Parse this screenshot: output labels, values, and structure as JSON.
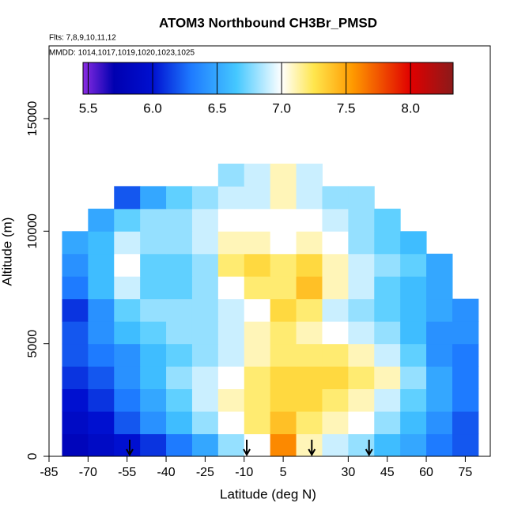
{
  "chart_data": {
    "type": "heatmap",
    "title": "ATOM3 Northbound CH3Br_PMSD",
    "subtitle": "Flts: 7,8,9,10,11,12",
    "annotation": "MMDD: 1014,1017,1019,1020,1023,1025",
    "x_label": "Latitude (deg N)",
    "y_label": "Altitude (m)",
    "xlim": [
      -85,
      84.6
    ],
    "ylim": [
      0,
      18230
    ],
    "xticks": [
      -85,
      -70,
      -55,
      -40,
      -25,
      -10,
      5,
      30,
      45,
      60,
      75
    ],
    "yticks": [
      0,
      5000,
      10000,
      15000
    ],
    "x": [
      -75,
      -65,
      -55,
      -45,
      -35,
      -25,
      -15,
      -5,
      5,
      15,
      25,
      35,
      45,
      55,
      65,
      75
    ],
    "y": [
      500,
      1500,
      2500,
      3500,
      4500,
      5500,
      6500,
      7500,
      8500,
      9500,
      10500,
      11500,
      12500
    ],
    "z": [
      [
        5.8,
        5.9,
        6.0,
        6.1,
        6.3,
        6.5,
        6.8,
        7.0,
        7.6,
        7.1,
        6.9,
        6.8,
        6.6,
        6.5,
        6.3,
        6.2
      ],
      [
        5.9,
        6.0,
        6.2,
        6.4,
        6.6,
        6.8,
        7.0,
        7.2,
        7.4,
        7.2,
        7.1,
        7.0,
        6.8,
        6.6,
        6.4,
        6.2
      ],
      [
        6.0,
        6.1,
        6.3,
        6.5,
        6.7,
        6.9,
        7.1,
        7.2,
        7.3,
        7.3,
        7.2,
        7.1,
        6.9,
        6.7,
        6.5,
        6.3
      ],
      [
        6.1,
        6.2,
        6.4,
        6.6,
        6.8,
        6.9,
        7.0,
        7.2,
        7.3,
        7.3,
        7.3,
        7.2,
        7.1,
        6.8,
        6.5,
        6.3
      ],
      [
        6.2,
        6.3,
        6.4,
        6.6,
        6.7,
        6.8,
        6.9,
        7.1,
        7.2,
        7.2,
        7.2,
        7.1,
        6.9,
        6.7,
        6.4,
        6.3
      ],
      [
        6.2,
        6.4,
        6.6,
        6.7,
        6.8,
        6.8,
        6.9,
        7.1,
        7.2,
        7.1,
        7.0,
        6.9,
        6.8,
        6.6,
        6.4,
        6.4
      ],
      [
        6.1,
        6.4,
        6.7,
        6.8,
        6.8,
        6.8,
        6.9,
        7.0,
        7.3,
        7.2,
        6.9,
        6.8,
        6.7,
        6.6,
        6.5,
        6.4
      ],
      [
        6.3,
        6.6,
        6.9,
        6.7,
        6.7,
        6.8,
        7.0,
        7.2,
        7.2,
        7.4,
        7.1,
        6.9,
        6.7,
        6.6,
        6.5,
        null
      ],
      [
        6.4,
        6.6,
        7.0,
        6.7,
        6.7,
        6.8,
        7.2,
        7.3,
        7.2,
        7.3,
        7.1,
        6.9,
        6.8,
        6.7,
        6.5,
        null
      ],
      [
        6.5,
        6.6,
        6.9,
        6.8,
        6.8,
        6.9,
        7.1,
        7.1,
        7.0,
        7.1,
        7.0,
        6.8,
        6.7,
        6.6,
        null,
        null
      ],
      [
        null,
        6.5,
        6.7,
        6.8,
        6.8,
        6.9,
        7.0,
        7.0,
        7.0,
        7.0,
        6.9,
        6.8,
        6.7,
        null,
        null,
        null
      ],
      [
        null,
        null,
        6.2,
        6.5,
        6.7,
        6.8,
        6.9,
        6.9,
        7.1,
        6.9,
        6.8,
        6.8,
        null,
        null,
        null,
        null
      ],
      [
        null,
        null,
        null,
        null,
        null,
        null,
        6.8,
        6.9,
        7.1,
        6.9,
        null,
        null,
        null,
        null,
        null,
        null
      ]
    ],
    "arrows": [
      -54,
      -9,
      16,
      38
    ],
    "colorbar": {
      "lim": [
        5.46,
        8.33
      ],
      "ticks": [
        5.5,
        {
          "value": 6,
          "label": "6.0"
        },
        6.5,
        {
          "value": 7,
          "label": "7.0"
        },
        7.5,
        {
          "value": 8,
          "label": "8.0"
        }
      ],
      "stops": [
        {
          "value": 5.46,
          "color": "#8a2be2"
        },
        {
          "value": 5.7,
          "color": "#0000b0"
        },
        {
          "value": 6.0,
          "color": "#0010d0"
        },
        {
          "value": 6.3,
          "color": "#1e7bff"
        },
        {
          "value": 6.65,
          "color": "#45c8ff"
        },
        {
          "value": 7.0,
          "color": "#ffffff"
        },
        {
          "value": 7.25,
          "color": "#ffe64d"
        },
        {
          "value": 7.55,
          "color": "#ff9a00"
        },
        {
          "value": 8.0,
          "color": "#e00000"
        },
        {
          "value": 8.33,
          "color": "#8b1a1a"
        }
      ]
    }
  }
}
